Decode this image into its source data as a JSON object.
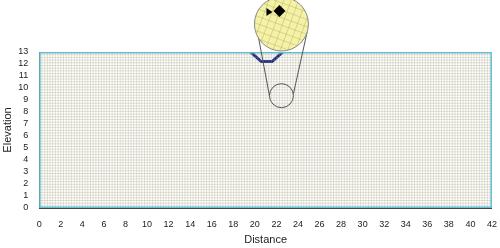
{
  "chart_data": {
    "type": "mesh",
    "x_label": "Distance",
    "y_label": "Elevation",
    "xlim": [
      0,
      42
    ],
    "ylim": [
      0,
      13
    ],
    "xticks": [
      0,
      2,
      4,
      6,
      8,
      10,
      12,
      14,
      16,
      18,
      20,
      22,
      24,
      26,
      28,
      30,
      32,
      34,
      36,
      38,
      40,
      42
    ],
    "yticks": [
      0,
      1,
      2,
      3,
      4,
      5,
      6,
      7,
      8,
      9,
      10,
      11,
      12,
      13
    ],
    "grid": false,
    "domain": {
      "x": [
        0,
        42,
        42,
        0,
        0
      ],
      "y": [
        0,
        0,
        13,
        13,
        0
      ],
      "color": "#f6f2a4",
      "line_color": "#5cc6e8"
    },
    "footing": {
      "x": [
        19.6,
        20.6,
        21.6,
        22.6
      ],
      "y": [
        13,
        12.2,
        12.2,
        13
      ],
      "color": "#1f2a8c"
    }
  }
}
